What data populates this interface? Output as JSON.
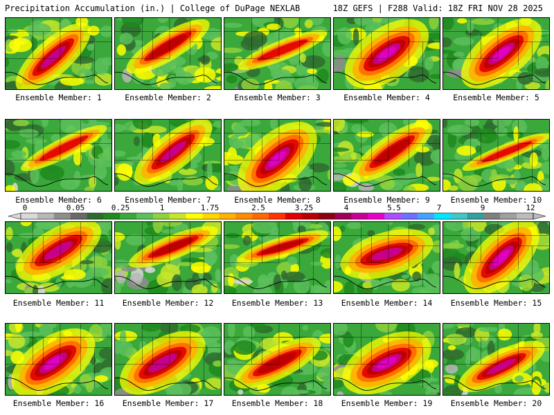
{
  "header": {
    "title": "Precipitation Accumulation (in.) | College of DuPage NEXLAB",
    "run_info": "18Z GEFS | F288 Valid: 18Z FRI NOV 28 2025"
  },
  "colorbar": {
    "tick_labels": [
      "0",
      "0.05",
      "0.25",
      "1",
      "1.75",
      "2.5",
      "3.25",
      "4",
      "5.5",
      "7",
      "9",
      "12"
    ],
    "colors": [
      "#d9d9d9",
      "#b8b8b8",
      "#8e8e8e",
      "#6a6a6a",
      "#2f6b2f",
      "#1f8a1f",
      "#3aa83a",
      "#5cc05c",
      "#8fd23c",
      "#c8e628",
      "#ffff00",
      "#ffd700",
      "#ffb000",
      "#ff8c00",
      "#ff6a00",
      "#ff3300",
      "#e00000",
      "#b80000",
      "#8b0010",
      "#a0005a",
      "#c80096",
      "#e600c8",
      "#b04cff",
      "#7070ff",
      "#4aa0ff",
      "#00e6ff",
      "#40c8c8",
      "#30a0a0",
      "#808080",
      "#a0a0a0",
      "#bcbcbc"
    ]
  },
  "members": [
    {
      "label": "Ensemble Member: 1"
    },
    {
      "label": "Ensemble Member: 2"
    },
    {
      "label": "Ensemble Member: 3"
    },
    {
      "label": "Ensemble Member: 4"
    },
    {
      "label": "Ensemble Member: 5"
    },
    {
      "label": "Ensemble Member: 6"
    },
    {
      "label": "Ensemble Member: 7"
    },
    {
      "label": "Ensemble Member: 8"
    },
    {
      "label": "Ensemble Member: 9"
    },
    {
      "label": "Ensemble Member: 10"
    },
    {
      "label": "Ensemble Member: 11"
    },
    {
      "label": "Ensemble Member: 12"
    },
    {
      "label": "Ensemble Member: 13"
    },
    {
      "label": "Ensemble Member: 14"
    },
    {
      "label": "Ensemble Member: 15"
    },
    {
      "label": "Ensemble Member: 16"
    },
    {
      "label": "Ensemble Member: 17"
    },
    {
      "label": "Ensemble Member: 18"
    },
    {
      "label": "Ensemble Member: 19"
    },
    {
      "label": "Ensemble Member: 20"
    }
  ]
}
